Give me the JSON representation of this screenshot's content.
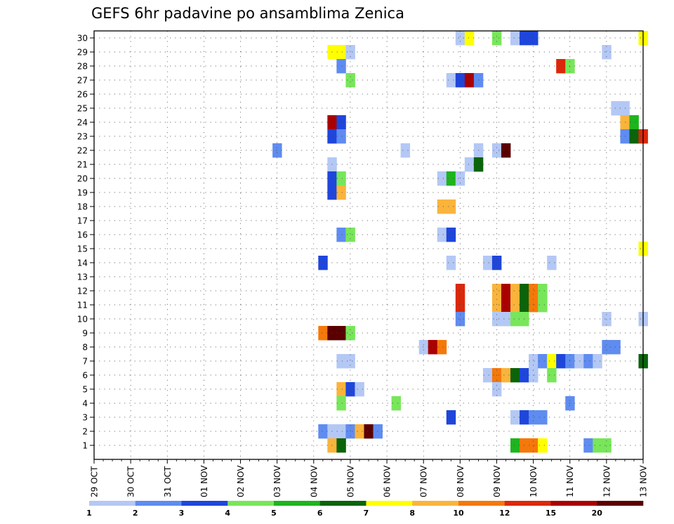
{
  "chart_data": {
    "type": "heatmap",
    "title": "GEFS 6hr padavine po ansamblima Zenica",
    "x_start": "2020-10-29",
    "x_tick_labels": [
      "29 OCT",
      "30 OCT",
      "31 OCT",
      "01 NOV",
      "02 NOV",
      "03 NOV",
      "04 NOV",
      "05 NOV",
      "06 NOV",
      "07 NOV",
      "08 NOV",
      "09 NOV",
      "10 NOV",
      "11 NOV",
      "12 NOV",
      "13 NOV"
    ],
    "y_range": [
      1,
      30
    ],
    "y_tick_labels": [
      "1",
      "2",
      "3",
      "4",
      "5",
      "6",
      "7",
      "8",
      "9",
      "10",
      "11",
      "12",
      "13",
      "14",
      "15",
      "16",
      "17",
      "18",
      "19",
      "20",
      "21",
      "22",
      "23",
      "24",
      "25",
      "26",
      "27",
      "28",
      "29",
      "30"
    ],
    "step_hours": 6,
    "colorbar": {
      "labels": [
        "1",
        "2",
        "3",
        "4",
        "5",
        "6",
        "7",
        "8",
        "10",
        "12",
        "15",
        "20"
      ],
      "colors": [
        "#b4c8f5",
        "#5f8cf0",
        "#1e46dc",
        "#78e65a",
        "#1eb41e",
        "#0a640a",
        "#ffff00",
        "#fab43c",
        "#f5780a",
        "#dc280a",
        "#aa0000",
        "#5a0000"
      ]
    },
    "cells": [
      {
        "member": 30,
        "time": "2020-11-08T00",
        "bin": 1
      },
      {
        "member": 30,
        "time": "2020-11-08T06",
        "bin": 7
      },
      {
        "member": 30,
        "time": "2020-11-09T00",
        "bin": 4
      },
      {
        "member": 30,
        "time": "2020-11-09T12",
        "bin": 1
      },
      {
        "member": 30,
        "time": "2020-11-09T18",
        "bin": 3
      },
      {
        "member": 30,
        "time": "2020-11-10T00",
        "bin": 3
      },
      {
        "member": 30,
        "time": "2020-11-13T00",
        "bin": 7
      },
      {
        "member": 29,
        "time": "2020-11-04T12",
        "bin": 7
      },
      {
        "member": 29,
        "time": "2020-11-04T18",
        "bin": 7
      },
      {
        "member": 29,
        "time": "2020-11-05T00",
        "bin": 1
      },
      {
        "member": 29,
        "time": "2020-11-12T00",
        "bin": 1
      },
      {
        "member": 28,
        "time": "2020-11-04T18",
        "bin": 2
      },
      {
        "member": 28,
        "time": "2020-11-10T18",
        "bin": 10
      },
      {
        "member": 28,
        "time": "2020-11-11T00",
        "bin": 4
      },
      {
        "member": 27,
        "time": "2020-11-05T00",
        "bin": 4
      },
      {
        "member": 27,
        "time": "2020-11-07T18",
        "bin": 1
      },
      {
        "member": 27,
        "time": "2020-11-08T00",
        "bin": 3
      },
      {
        "member": 27,
        "time": "2020-11-08T06",
        "bin": 11
      },
      {
        "member": 27,
        "time": "2020-11-08T12",
        "bin": 2
      },
      {
        "member": 25,
        "time": "2020-11-12T06",
        "bin": 1
      },
      {
        "member": 25,
        "time": "2020-11-12T12",
        "bin": 1
      },
      {
        "member": 24,
        "time": "2020-11-04T12",
        "bin": 11
      },
      {
        "member": 24,
        "time": "2020-11-04T18",
        "bin": 3
      },
      {
        "member": 24,
        "time": "2020-11-12T12",
        "bin": 8
      },
      {
        "member": 24,
        "time": "2020-11-12T18",
        "bin": 5
      },
      {
        "member": 23,
        "time": "2020-11-04T12",
        "bin": 3
      },
      {
        "member": 23,
        "time": "2020-11-04T18",
        "bin": 2
      },
      {
        "member": 23,
        "time": "2020-11-12T12",
        "bin": 2
      },
      {
        "member": 23,
        "time": "2020-11-12T18",
        "bin": 6
      },
      {
        "member": 23,
        "time": "2020-11-13T00",
        "bin": 10
      },
      {
        "member": 22,
        "time": "2020-11-03T00",
        "bin": 2
      },
      {
        "member": 22,
        "time": "2020-11-06T12",
        "bin": 1
      },
      {
        "member": 22,
        "time": "2020-11-08T12",
        "bin": 1
      },
      {
        "member": 22,
        "time": "2020-11-09T00",
        "bin": 1
      },
      {
        "member": 22,
        "time": "2020-11-09T06",
        "bin": 12
      },
      {
        "member": 21,
        "time": "2020-11-04T12",
        "bin": 1
      },
      {
        "member": 21,
        "time": "2020-11-08T06",
        "bin": 1
      },
      {
        "member": 21,
        "time": "2020-11-08T12",
        "bin": 6
      },
      {
        "member": 20,
        "time": "2020-11-04T12",
        "bin": 3
      },
      {
        "member": 20,
        "time": "2020-11-04T18",
        "bin": 4
      },
      {
        "member": 20,
        "time": "2020-11-07T12",
        "bin": 1
      },
      {
        "member": 20,
        "time": "2020-11-07T18",
        "bin": 5
      },
      {
        "member": 20,
        "time": "2020-11-08T00",
        "bin": 1
      },
      {
        "member": 19,
        "time": "2020-11-04T12",
        "bin": 3
      },
      {
        "member": 19,
        "time": "2020-11-04T18",
        "bin": 8
      },
      {
        "member": 18,
        "time": "2020-11-07T12",
        "bin": 8
      },
      {
        "member": 18,
        "time": "2020-11-07T18",
        "bin": 8
      },
      {
        "member": 16,
        "time": "2020-11-04T18",
        "bin": 2
      },
      {
        "member": 16,
        "time": "2020-11-05T00",
        "bin": 4
      },
      {
        "member": 16,
        "time": "2020-11-07T12",
        "bin": 1
      },
      {
        "member": 16,
        "time": "2020-11-07T18",
        "bin": 3
      },
      {
        "member": 15,
        "time": "2020-11-13T00",
        "bin": 7
      },
      {
        "member": 14,
        "time": "2020-11-04T06",
        "bin": 3
      },
      {
        "member": 14,
        "time": "2020-11-07T18",
        "bin": 1
      },
      {
        "member": 14,
        "time": "2020-11-08T18",
        "bin": 1
      },
      {
        "member": 14,
        "time": "2020-11-09T00",
        "bin": 3
      },
      {
        "member": 14,
        "time": "2020-11-10T12",
        "bin": 1
      },
      {
        "member": 12,
        "time": "2020-11-08T00",
        "bin": 10
      },
      {
        "member": 12,
        "time": "2020-11-09T00",
        "bin": 8
      },
      {
        "member": 12,
        "time": "2020-11-09T06",
        "bin": 11
      },
      {
        "member": 12,
        "time": "2020-11-09T12",
        "bin": 8
      },
      {
        "member": 12,
        "time": "2020-11-09T18",
        "bin": 6
      },
      {
        "member": 12,
        "time": "2020-11-10T00",
        "bin": 9
      },
      {
        "member": 12,
        "time": "2020-11-10T06",
        "bin": 4
      },
      {
        "member": 11,
        "time": "2020-11-08T00",
        "bin": 10
      },
      {
        "member": 11,
        "time": "2020-11-09T00",
        "bin": 8
      },
      {
        "member": 11,
        "time": "2020-11-09T06",
        "bin": 11
      },
      {
        "member": 11,
        "time": "2020-11-09T12",
        "bin": 8
      },
      {
        "member": 11,
        "time": "2020-11-09T18",
        "bin": 6
      },
      {
        "member": 11,
        "time": "2020-11-10T00",
        "bin": 9
      },
      {
        "member": 11,
        "time": "2020-11-10T06",
        "bin": 4
      },
      {
        "member": 10,
        "time": "2020-11-08T00",
        "bin": 2
      },
      {
        "member": 10,
        "time": "2020-11-09T00",
        "bin": 1
      },
      {
        "member": 10,
        "time": "2020-11-09T06",
        "bin": 1
      },
      {
        "member": 10,
        "time": "2020-11-09T12",
        "bin": 4
      },
      {
        "member": 10,
        "time": "2020-11-09T18",
        "bin": 4
      },
      {
        "member": 10,
        "time": "2020-11-12T00",
        "bin": 1
      },
      {
        "member": 10,
        "time": "2020-11-13T00",
        "bin": 1
      },
      {
        "member": 9,
        "time": "2020-11-04T06",
        "bin": 9
      },
      {
        "member": 9,
        "time": "2020-11-04T12",
        "bin": 12
      },
      {
        "member": 9,
        "time": "2020-11-04T18",
        "bin": 12
      },
      {
        "member": 9,
        "time": "2020-11-05T00",
        "bin": 4
      },
      {
        "member": 8,
        "time": "2020-11-07T00",
        "bin": 1
      },
      {
        "member": 8,
        "time": "2020-11-07T06",
        "bin": 11
      },
      {
        "member": 8,
        "time": "2020-11-07T12",
        "bin": 9
      },
      {
        "member": 8,
        "time": "2020-11-12T00",
        "bin": 2
      },
      {
        "member": 8,
        "time": "2020-11-12T06",
        "bin": 2
      },
      {
        "member": 7,
        "time": "2020-11-04T18",
        "bin": 1
      },
      {
        "member": 7,
        "time": "2020-11-05T00",
        "bin": 1
      },
      {
        "member": 7,
        "time": "2020-11-10T00",
        "bin": 1
      },
      {
        "member": 7,
        "time": "2020-11-10T06",
        "bin": 2
      },
      {
        "member": 7,
        "time": "2020-11-10T12",
        "bin": 7
      },
      {
        "member": 7,
        "time": "2020-11-10T18",
        "bin": 3
      },
      {
        "member": 7,
        "time": "2020-11-11T00",
        "bin": 2
      },
      {
        "member": 7,
        "time": "2020-11-11T06",
        "bin": 1
      },
      {
        "member": 7,
        "time": "2020-11-11T12",
        "bin": 2
      },
      {
        "member": 7,
        "time": "2020-11-11T18",
        "bin": 1
      },
      {
        "member": 7,
        "time": "2020-11-13T00",
        "bin": 6
      },
      {
        "member": 6,
        "time": "2020-11-08T18",
        "bin": 1
      },
      {
        "member": 6,
        "time": "2020-11-09T00",
        "bin": 9
      },
      {
        "member": 6,
        "time": "2020-11-09T06",
        "bin": 8
      },
      {
        "member": 6,
        "time": "2020-11-09T12",
        "bin": 6
      },
      {
        "member": 6,
        "time": "2020-11-09T18",
        "bin": 3
      },
      {
        "member": 6,
        "time": "2020-11-10T00",
        "bin": 1
      },
      {
        "member": 6,
        "time": "2020-11-10T12",
        "bin": 4
      },
      {
        "member": 5,
        "time": "2020-11-04T18",
        "bin": 8
      },
      {
        "member": 5,
        "time": "2020-11-05T00",
        "bin": 3
      },
      {
        "member": 5,
        "time": "2020-11-05T06",
        "bin": 1
      },
      {
        "member": 5,
        "time": "2020-11-09T00",
        "bin": 1
      },
      {
        "member": 4,
        "time": "2020-11-04T18",
        "bin": 4
      },
      {
        "member": 4,
        "time": "2020-11-06T06",
        "bin": 4
      },
      {
        "member": 4,
        "time": "2020-11-11T00",
        "bin": 2
      },
      {
        "member": 3,
        "time": "2020-11-07T18",
        "bin": 3
      },
      {
        "member": 3,
        "time": "2020-11-09T12",
        "bin": 1
      },
      {
        "member": 3,
        "time": "2020-11-09T18",
        "bin": 3
      },
      {
        "member": 3,
        "time": "2020-11-10T00",
        "bin": 2
      },
      {
        "member": 3,
        "time": "2020-11-10T06",
        "bin": 2
      },
      {
        "member": 2,
        "time": "2020-11-04T06",
        "bin": 2
      },
      {
        "member": 2,
        "time": "2020-11-04T12",
        "bin": 1
      },
      {
        "member": 2,
        "time": "2020-11-04T18",
        "bin": 1
      },
      {
        "member": 2,
        "time": "2020-11-05T00",
        "bin": 2
      },
      {
        "member": 2,
        "time": "2020-11-05T06",
        "bin": 8
      },
      {
        "member": 2,
        "time": "2020-11-05T12",
        "bin": 12
      },
      {
        "member": 2,
        "time": "2020-11-05T18",
        "bin": 2
      },
      {
        "member": 1,
        "time": "2020-11-04T12",
        "bin": 8
      },
      {
        "member": 1,
        "time": "2020-11-04T18",
        "bin": 6
      },
      {
        "member": 1,
        "time": "2020-11-09T12",
        "bin": 5
      },
      {
        "member": 1,
        "time": "2020-11-09T18",
        "bin": 9
      },
      {
        "member": 1,
        "time": "2020-11-10T00",
        "bin": 9
      },
      {
        "member": 1,
        "time": "2020-11-10T06",
        "bin": 7
      },
      {
        "member": 1,
        "time": "2020-11-11T12",
        "bin": 2
      },
      {
        "member": 1,
        "time": "2020-11-11T18",
        "bin": 4
      },
      {
        "member": 1,
        "time": "2020-11-12T00",
        "bin": 4
      }
    ]
  }
}
